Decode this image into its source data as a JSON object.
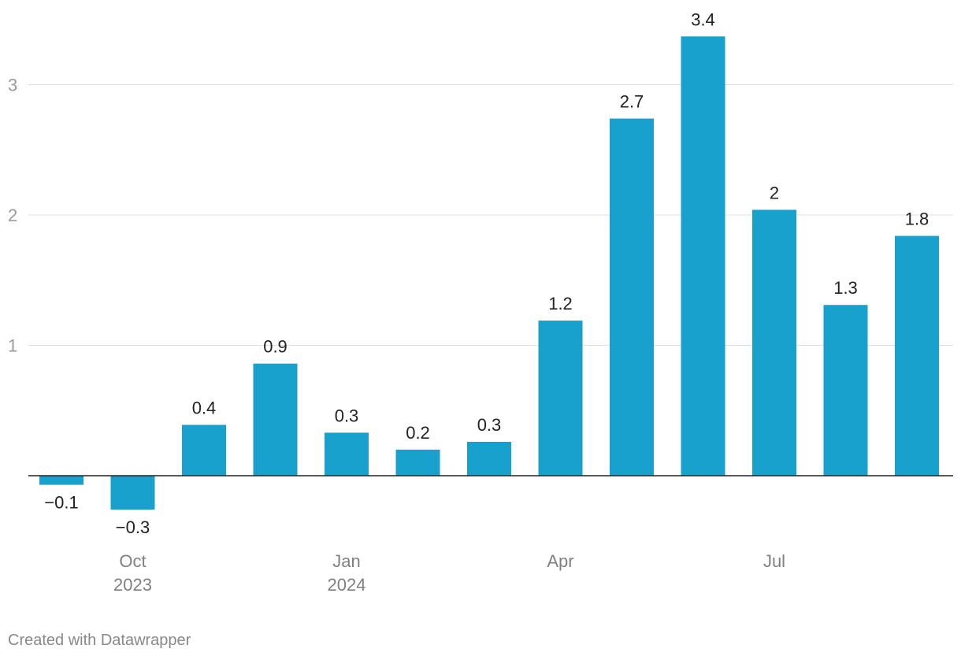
{
  "chart_data": {
    "type": "bar",
    "title": "",
    "xlabel": "",
    "ylabel": "",
    "x": [
      "2023-09",
      "2023-10",
      "2023-11",
      "2023-12",
      "2024-01",
      "2024-02",
      "2024-03",
      "2024-04",
      "2024-05",
      "2024-06",
      "2024-07",
      "2024-08",
      "2024-09"
    ],
    "values": [
      -0.07,
      -0.26,
      0.39,
      0.86,
      0.33,
      0.2,
      0.26,
      1.19,
      2.74,
      3.37,
      2.04,
      1.31,
      1.84
    ],
    "data_labels": [
      "−0.1",
      "−0.3",
      "0.4",
      "0.9",
      "0.3",
      "0.2",
      "0.3",
      "1.2",
      "2.7",
      "3.4",
      "2",
      "1.3",
      "1.8"
    ],
    "x_tick_labels": [
      {
        "index": 1,
        "lines": [
          "Oct",
          "2023"
        ]
      },
      {
        "index": 4,
        "lines": [
          "Jan",
          "2024"
        ]
      },
      {
        "index": 7,
        "lines": [
          "Apr"
        ]
      },
      {
        "index": 10,
        "lines": [
          "Jul"
        ]
      }
    ],
    "y_ticks": [
      1,
      2,
      3
    ],
    "ylim": [
      -0.4,
      3.6
    ],
    "grid": true,
    "colors": {
      "bar": "#18a1cd",
      "gridline": "#e0e0e0",
      "baseline": "#222222"
    }
  },
  "footer": {
    "credit": "Created with Datawrapper"
  }
}
